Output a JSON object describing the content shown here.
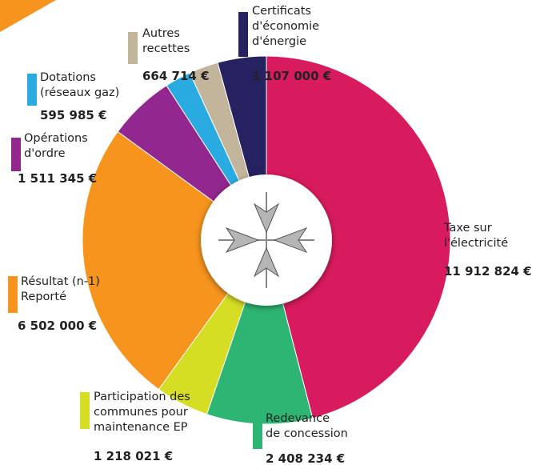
{
  "chart_data": {
    "type": "donut",
    "categories": [
      "Taxe sur\nl'électricité",
      "Redevance\nde concession",
      "Participation des\ncommunes pour\nmaintenance EP",
      "Résultat (n-1)\nReporté",
      "Opérations\nd'ordre",
      "Dotations\n(réseaux gaz)",
      "Autres\nrecettes",
      "Certificats\nd'économie\nd'énergie"
    ],
    "values": [
      11912824,
      2408234,
      1218021,
      6502000,
      1511345,
      595985,
      664714,
      1107000
    ],
    "value_labels": [
      "11 912 824 €",
      "2 408 234 €",
      "1 218 021 €",
      "6 502 000 €",
      "1 511 345 €",
      "595 985 €",
      "664 714 €",
      "1 107 000 €"
    ],
    "colors": [
      "#d81b5e",
      "#2db574",
      "#d6de23",
      "#f7941d",
      "#92278f",
      "#29abe2",
      "#c2b59b",
      "#262262"
    ]
  }
}
